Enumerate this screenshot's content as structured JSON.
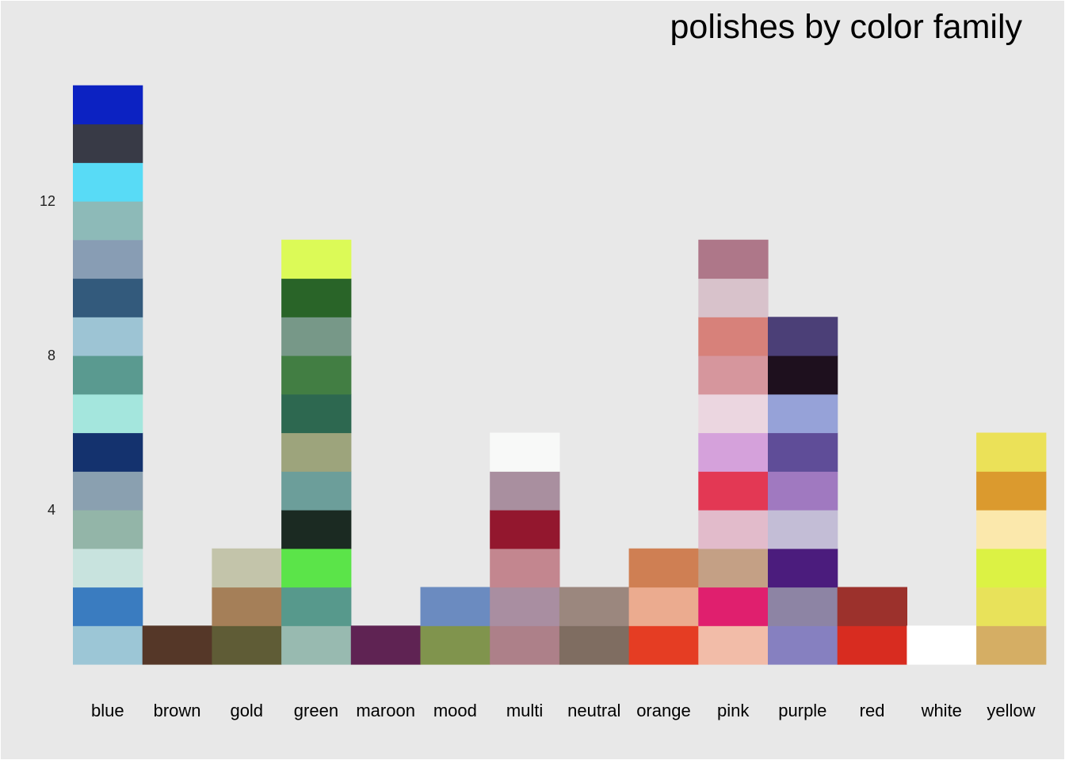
{
  "chart_data": {
    "type": "bar",
    "title": "polishes by color family",
    "xlabel": "",
    "ylabel": "",
    "ylim": [
      0,
      15
    ],
    "y_ticks": [
      4,
      8,
      12
    ],
    "y_tick_labels": [
      "4",
      "8",
      "12"
    ],
    "grid": false,
    "legend": "none",
    "background": "#e8e8e8",
    "categories": [
      "blue",
      "brown",
      "gold",
      "green",
      "maroon",
      "mood",
      "multi",
      "neutral",
      "orange",
      "pink",
      "purple",
      "red",
      "white",
      "yellow"
    ],
    "values": [
      15,
      1,
      3,
      11,
      1,
      2,
      6,
      2,
      3,
      11,
      9,
      2,
      1,
      6
    ],
    "swatches": [
      [
        "#9cc6d6",
        "#3a7cc0",
        "#c8e3de",
        "#93b5a8",
        "#8aa0b0",
        "#14326e",
        "#a4e6dd",
        "#5a9a90",
        "#9dc4d4",
        "#335a7c",
        "#889db4",
        "#8dbab8",
        "#58dbf6",
        "#383a46",
        "#0c22c2"
      ],
      [
        "#553728"
      ],
      [
        "#5f5c36",
        "#a57f58",
        "#c3c4aa"
      ],
      [
        "#98bab0",
        "#57998c",
        "#5be449",
        "#1b2a22",
        "#6c9e9a",
        "#9da47c",
        "#2d6850",
        "#427e43",
        "#779888",
        "#296428",
        "#dcfa57"
      ],
      [
        "#5f2353"
      ],
      [
        "#80944d",
        "#6b8bc0"
      ],
      [
        "#ad8089",
        "#a98ea1",
        "#c3868f",
        "#93172e",
        "#a98f9f",
        "#f8f9f8"
      ],
      [
        "#7f6d61",
        "#9b877e"
      ],
      [
        "#e53d23",
        "#ebab8f",
        "#cf7f53"
      ],
      [
        "#f2bca8",
        "#e01f6e",
        "#c4a085",
        "#e2bbcb",
        "#e33854",
        "#d5a1db",
        "#ebd6e0",
        "#d6969d",
        "#d7817a",
        "#d8c2cb",
        "#ae7789"
      ],
      [
        "#8680c0",
        "#8d84a4",
        "#4b1c7d",
        "#c3bdd6",
        "#a079c0",
        "#5f4d98",
        "#96a2d8",
        "#1e101e",
        "#4b3f77"
      ],
      [
        "#d82c20",
        "#9c312c"
      ],
      [
        "#ffffff"
      ],
      [
        "#d5ae64",
        "#e8e25a",
        "#dcf244",
        "#fbe8ac",
        "#db9a2e",
        "#ebe158"
      ]
    ]
  }
}
